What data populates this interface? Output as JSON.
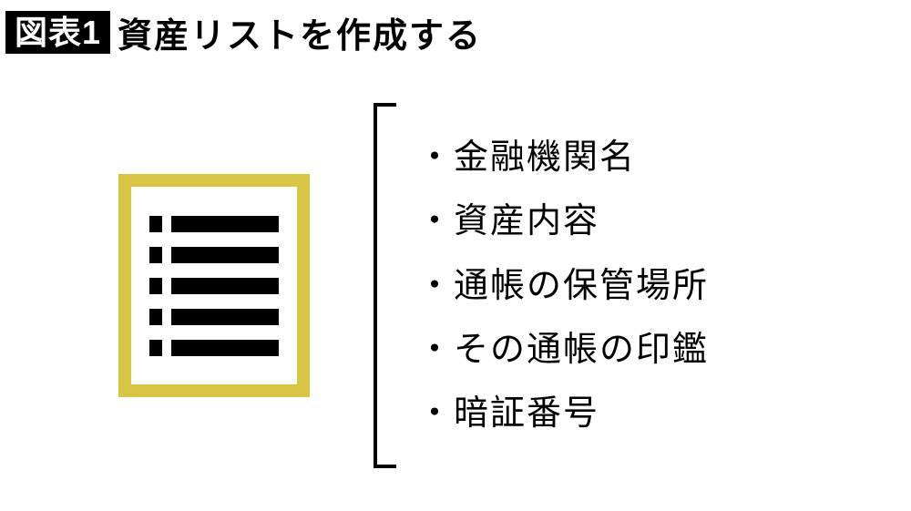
{
  "header": {
    "badge": "図表1",
    "title": "資産リストを作成する"
  },
  "icon": {
    "border_color": "#d8c544",
    "background": "#ffffff",
    "line_color": "#000000",
    "rows": 5
  },
  "bracket": {
    "color": "#000000"
  },
  "list": {
    "items": [
      "・金融機関名",
      "・資産内容",
      "・通帳の保管場所",
      "・その通帳の印鑑",
      "・暗証番号"
    ],
    "font_size": 38,
    "color": "#000000"
  },
  "colors": {
    "background": "#ffffff",
    "badge_bg": "#000000",
    "badge_fg": "#ffffff",
    "title_fg": "#000000"
  }
}
